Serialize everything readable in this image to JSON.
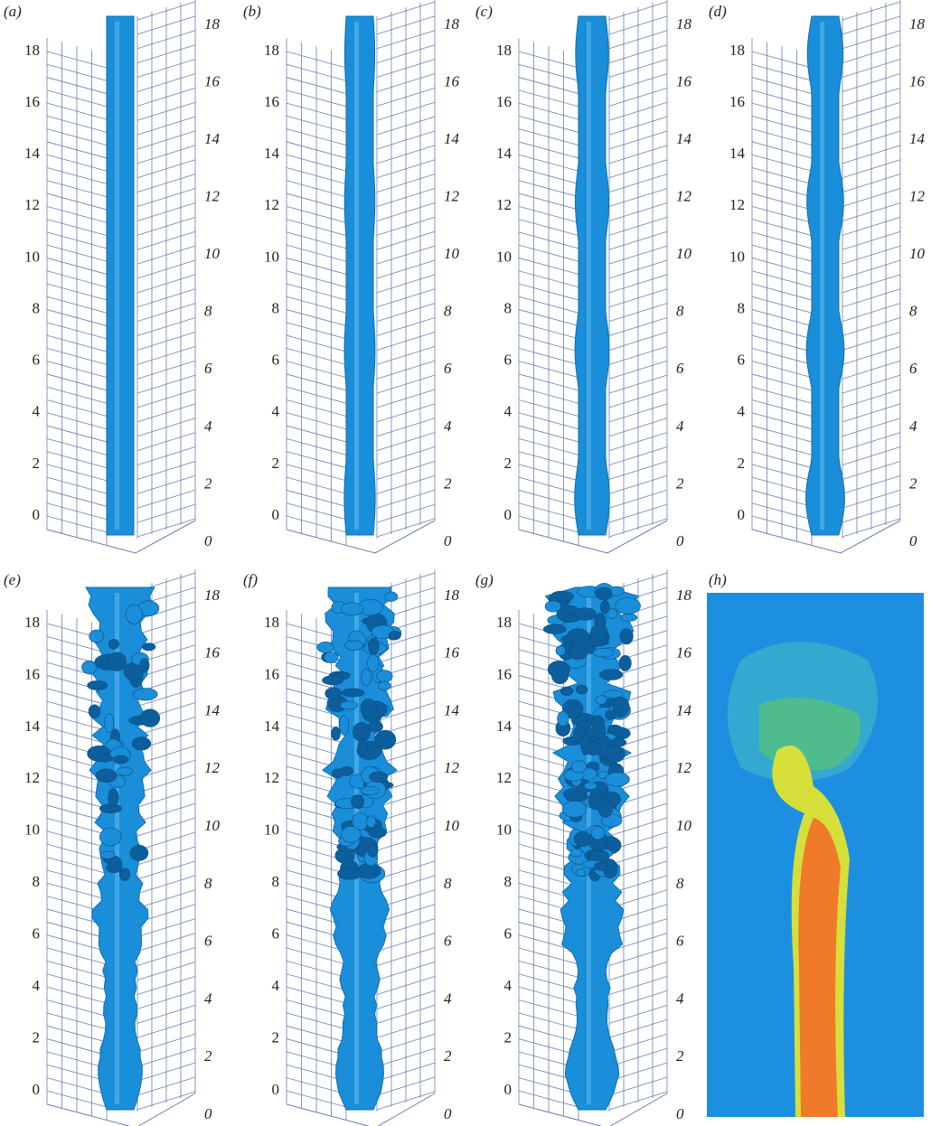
{
  "panels": [
    {
      "label": "(a)",
      "left_ticks": [
        0,
        2,
        4,
        6,
        8,
        10,
        12,
        14,
        16,
        18
      ],
      "right_ticks": [
        0,
        2,
        4,
        6,
        8,
        10,
        12,
        14,
        16,
        18
      ]
    },
    {
      "label": "(b)",
      "left_ticks": [
        0,
        2,
        4,
        6,
        8,
        10,
        12,
        14,
        16,
        18
      ],
      "right_ticks": [
        0,
        2,
        4,
        6,
        8,
        10,
        12,
        14,
        16,
        18
      ]
    },
    {
      "label": "(c)",
      "left_ticks": [
        0,
        2,
        4,
        6,
        8,
        10,
        12,
        14,
        16,
        18
      ],
      "right_ticks": [
        0,
        2,
        4,
        6,
        8,
        10,
        12,
        14,
        16,
        18
      ]
    },
    {
      "label": "(d)",
      "left_ticks": [
        0,
        2,
        4,
        6,
        8,
        10,
        12,
        14,
        16,
        18
      ],
      "right_ticks": [
        0,
        2,
        4,
        6,
        8,
        10,
        12,
        14,
        16,
        18
      ]
    },
    {
      "label": "(e)",
      "left_ticks": [
        0,
        2,
        4,
        6,
        8,
        10,
        12,
        14,
        16,
        18
      ],
      "right_ticks": [
        0,
        2,
        4,
        6,
        8,
        10,
        12,
        14,
        16,
        18
      ]
    },
    {
      "label": "(f)",
      "left_ticks": [
        0,
        2,
        4,
        6,
        8,
        10,
        12,
        14,
        16,
        18
      ],
      "right_ticks": [
        0,
        2,
        4,
        6,
        8,
        10,
        12,
        14,
        16,
        18
      ]
    },
    {
      "label": "(g)",
      "left_ticks": [
        0,
        2,
        4,
        6,
        8,
        10,
        12,
        14,
        16,
        18
      ],
      "right_ticks": [
        0,
        2,
        4,
        6,
        8,
        10,
        12,
        14,
        16,
        18
      ]
    },
    {
      "label": "(h)"
    }
  ]
}
